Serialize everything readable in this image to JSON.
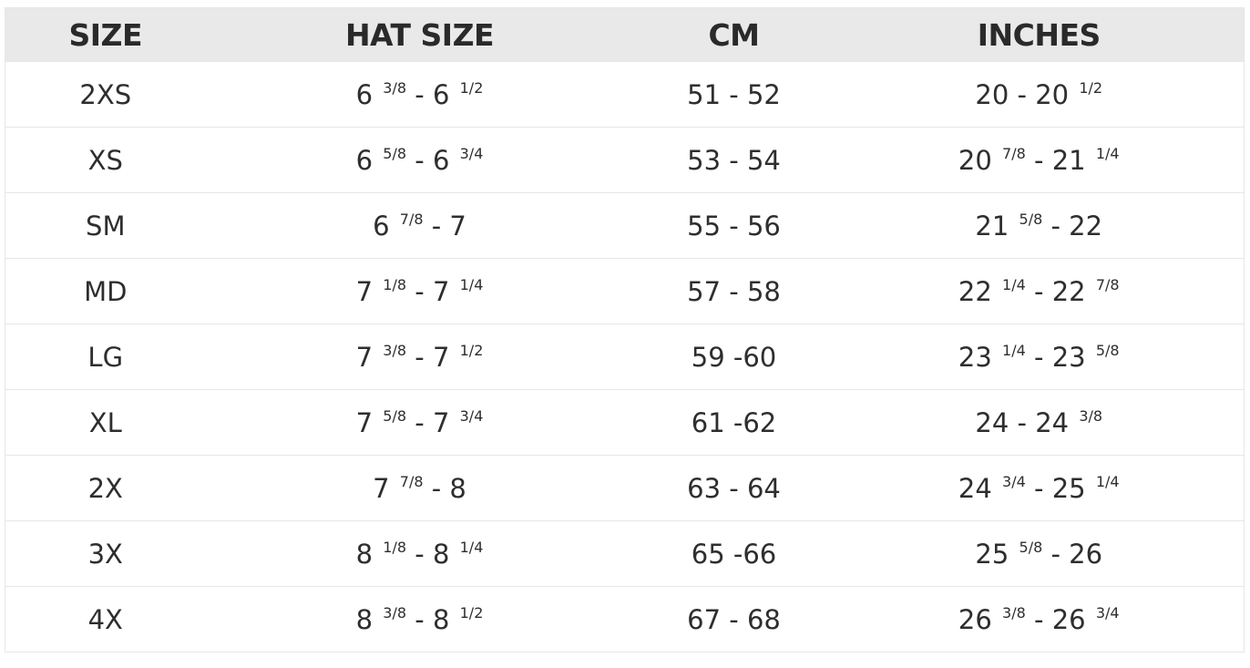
{
  "headers": [
    "SIZE",
    "HAT SIZE",
    "CM",
    "INCHES"
  ],
  "rows": [
    [
      [
        {
          "t": "2XS"
        }
      ],
      [
        {
          "t": "6 "
        },
        {
          "s": "3/8"
        },
        {
          "t": " - 6 "
        },
        {
          "s": "1/2"
        }
      ],
      [
        {
          "t": "51 - 52"
        }
      ],
      [
        {
          "t": "20 - 20 "
        },
        {
          "s": "1/2"
        }
      ]
    ],
    [
      [
        {
          "t": "XS"
        }
      ],
      [
        {
          "t": "6 "
        },
        {
          "s": "5/8"
        },
        {
          "t": " - 6 "
        },
        {
          "s": "3/4"
        }
      ],
      [
        {
          "t": "53 - 54"
        }
      ],
      [
        {
          "t": "20 "
        },
        {
          "s": "7/8"
        },
        {
          "t": " - 21 "
        },
        {
          "s": "1/4"
        }
      ]
    ],
    [
      [
        {
          "t": "SM"
        }
      ],
      [
        {
          "t": "6 "
        },
        {
          "s": "7/8"
        },
        {
          "t": " - 7"
        }
      ],
      [
        {
          "t": "55 - 56"
        }
      ],
      [
        {
          "t": "21 "
        },
        {
          "s": "5/8"
        },
        {
          "t": " - 22"
        }
      ]
    ],
    [
      [
        {
          "t": "MD"
        }
      ],
      [
        {
          "t": "7 "
        },
        {
          "s": "1/8"
        },
        {
          "t": " - 7 "
        },
        {
          "s": "1/4"
        }
      ],
      [
        {
          "t": "57 - 58"
        }
      ],
      [
        {
          "t": "22 "
        },
        {
          "s": "1/4"
        },
        {
          "t": " - 22 "
        },
        {
          "s": "7/8"
        }
      ]
    ],
    [
      [
        {
          "t": "LG"
        }
      ],
      [
        {
          "t": "7 "
        },
        {
          "s": "3/8"
        },
        {
          "t": " - 7 "
        },
        {
          "s": "1/2"
        }
      ],
      [
        {
          "t": "59 -60"
        }
      ],
      [
        {
          "t": "23 "
        },
        {
          "s": "1/4"
        },
        {
          "t": " - 23 "
        },
        {
          "s": "5/8"
        }
      ]
    ],
    [
      [
        {
          "t": "XL"
        }
      ],
      [
        {
          "t": "7 "
        },
        {
          "s": "5/8"
        },
        {
          "t": " - 7 "
        },
        {
          "s": "3/4"
        }
      ],
      [
        {
          "t": "61 -62"
        }
      ],
      [
        {
          "t": "24 - 24 "
        },
        {
          "s": "3/8"
        }
      ]
    ],
    [
      [
        {
          "t": "2X"
        }
      ],
      [
        {
          "t": "7 "
        },
        {
          "s": "7/8"
        },
        {
          "t": " - 8"
        }
      ],
      [
        {
          "t": "63 - 64"
        }
      ],
      [
        {
          "t": "24 "
        },
        {
          "s": "3/4"
        },
        {
          "t": " - 25 "
        },
        {
          "s": "1/4"
        }
      ]
    ],
    [
      [
        {
          "t": "3X"
        }
      ],
      [
        {
          "t": "8 "
        },
        {
          "s": "1/8"
        },
        {
          "t": " - 8 "
        },
        {
          "s": "1/4"
        }
      ],
      [
        {
          "t": "65 -66"
        }
      ],
      [
        {
          "t": "25 "
        },
        {
          "s": "5/8"
        },
        {
          "t": " - 26"
        }
      ]
    ],
    [
      [
        {
          "t": "4X"
        }
      ],
      [
        {
          "t": "8 "
        },
        {
          "s": "3/8"
        },
        {
          "t": " - 8 "
        },
        {
          "s": "1/2"
        }
      ],
      [
        {
          "t": "67 - 68"
        }
      ],
      [
        {
          "t": "26 "
        },
        {
          "s": "3/8"
        },
        {
          "t": " - 26 "
        },
        {
          "s": "3/4"
        }
      ]
    ]
  ]
}
